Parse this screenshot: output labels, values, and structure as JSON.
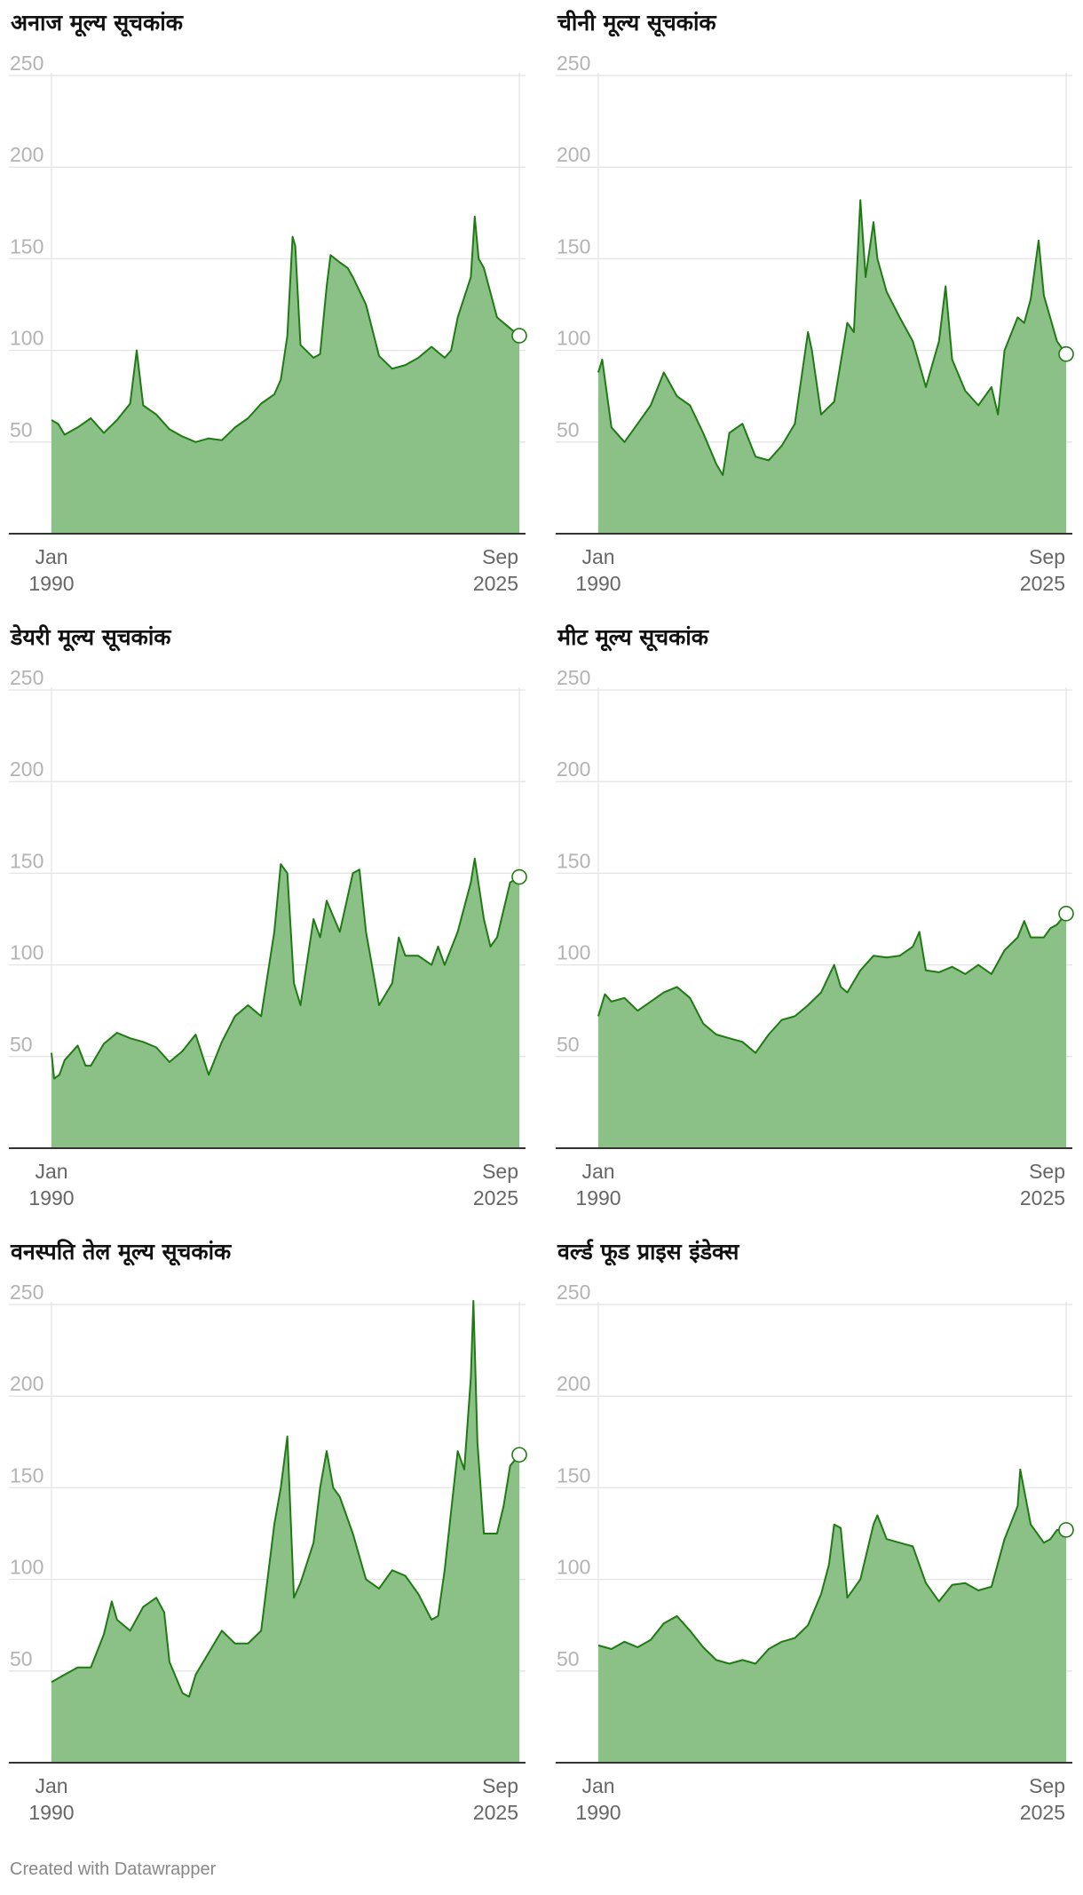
{
  "footer": {
    "credit": "Created with Datawrapper"
  },
  "colors": {
    "line": "#1f7a14",
    "area": "#8bc187",
    "grid": "#e4e4e4",
    "axis": "#333333"
  },
  "chart_data": [
    {
      "type": "area",
      "title": "अनाज मूल्य सूचकांक",
      "ylim": [
        0,
        250
      ],
      "yticks": [
        "250",
        "200",
        "150",
        "100",
        "50"
      ],
      "xticks": [
        {
          "month": "Jan",
          "year": "1990"
        },
        {
          "month": "Sep",
          "year": "2025"
        }
      ],
      "x": [
        1990.0,
        1990.5,
        1991.0,
        1992.0,
        1993.0,
        1994.0,
        1995.0,
        1996.0,
        1996.5,
        1997.0,
        1998.0,
        1999.0,
        2000.0,
        2001.0,
        2002.0,
        2003.0,
        2004.0,
        2005.0,
        2006.0,
        2007.0,
        2007.5,
        2008.0,
        2008.4,
        2008.6,
        2009.0,
        2010.0,
        2010.5,
        2011.0,
        2011.3,
        2012.0,
        2012.6,
        2013.0,
        2014.0,
        2015.0,
        2016.0,
        2017.0,
        2018.0,
        2019.0,
        2020.0,
        2020.5,
        2021.0,
        2022.0,
        2022.3,
        2022.6,
        2023.0,
        2024.0,
        2025.0,
        2025.7
      ],
      "values": [
        62,
        60,
        54,
        58,
        63,
        55,
        62,
        71,
        100,
        70,
        65,
        57,
        53,
        50,
        52,
        51,
        58,
        63,
        71,
        76,
        84,
        108,
        162,
        157,
        103,
        96,
        98,
        135,
        152,
        148,
        145,
        140,
        125,
        97,
        90,
        92,
        96,
        102,
        96,
        100,
        118,
        140,
        173,
        150,
        145,
        118,
        112,
        108
      ],
      "marker": {
        "x": 2025.7,
        "value": 108
      }
    },
    {
      "type": "area",
      "title": "चीनी मूल्य सूचकांक",
      "ylim": [
        0,
        250
      ],
      "yticks": [
        "250",
        "200",
        "150",
        "100",
        "50"
      ],
      "xticks": [
        {
          "month": "Jan",
          "year": "1990"
        },
        {
          "month": "Sep",
          "year": "2025"
        }
      ],
      "x": [
        1990.0,
        1990.3,
        1991.0,
        1992.0,
        1993.0,
        1994.0,
        1995.0,
        1996.0,
        1997.0,
        1998.0,
        1999.0,
        1999.5,
        2000.0,
        2001.0,
        2002.0,
        2003.0,
        2004.0,
        2005.0,
        2006.0,
        2006.3,
        2007.0,
        2008.0,
        2009.0,
        2009.5,
        2010.0,
        2010.4,
        2011.0,
        2011.3,
        2012.0,
        2013.0,
        2014.0,
        2014.4,
        2015.0,
        2016.0,
        2016.5,
        2017.0,
        2018.0,
        2019.0,
        2020.0,
        2020.5,
        2021.0,
        2022.0,
        2022.5,
        2023.0,
        2023.6,
        2024.0,
        2025.0,
        2025.7
      ],
      "values": [
        88,
        95,
        58,
        50,
        60,
        70,
        88,
        75,
        70,
        55,
        38,
        32,
        55,
        60,
        42,
        40,
        48,
        60,
        110,
        100,
        65,
        72,
        115,
        110,
        182,
        140,
        170,
        150,
        132,
        118,
        105,
        95,
        80,
        105,
        135,
        95,
        78,
        70,
        80,
        65,
        100,
        118,
        115,
        128,
        160,
        130,
        105,
        98
      ],
      "marker": {
        "x": 2025.7,
        "value": 98
      }
    },
    {
      "type": "area",
      "title": "डेयरी मूल्य सूचकांक",
      "ylim": [
        0,
        250
      ],
      "yticks": [
        "250",
        "200",
        "150",
        "100",
        "50"
      ],
      "xticks": [
        {
          "month": "Jan",
          "year": "1990"
        },
        {
          "month": "Sep",
          "year": "2025"
        }
      ],
      "x": [
        1990.0,
        1990.2,
        1990.6,
        1991.0,
        1992.0,
        1992.6,
        1993.0,
        1994.0,
        1995.0,
        1996.0,
        1997.0,
        1998.0,
        1999.0,
        2000.0,
        2001.0,
        2002.0,
        2003.0,
        2004.0,
        2005.0,
        2006.0,
        2007.0,
        2007.5,
        2008.0,
        2008.5,
        2009.0,
        2010.0,
        2010.5,
        2011.0,
        2012.0,
        2013.0,
        2013.5,
        2014.0,
        2015.0,
        2016.0,
        2016.5,
        2017.0,
        2018.0,
        2019.0,
        2019.5,
        2020.0,
        2021.0,
        2022.0,
        2022.3,
        2023.0,
        2023.5,
        2024.0,
        2025.0,
        2025.7
      ],
      "values": [
        52,
        38,
        40,
        48,
        56,
        45,
        45,
        57,
        63,
        60,
        58,
        55,
        47,
        53,
        62,
        40,
        58,
        72,
        78,
        72,
        118,
        155,
        150,
        90,
        78,
        125,
        115,
        135,
        118,
        150,
        152,
        118,
        78,
        90,
        115,
        105,
        105,
        100,
        110,
        100,
        118,
        145,
        158,
        125,
        110,
        115,
        145,
        148
      ],
      "marker": {
        "x": 2025.7,
        "value": 148
      }
    },
    {
      "type": "area",
      "title": "मीट मूल्य सूचकांक",
      "ylim": [
        0,
        250
      ],
      "yticks": [
        "250",
        "200",
        "150",
        "100",
        "50"
      ],
      "xticks": [
        {
          "month": "Jan",
          "year": "1990"
        },
        {
          "month": "Sep",
          "year": "2025"
        }
      ],
      "x": [
        1990.0,
        1990.5,
        1991.0,
        1992.0,
        1993.0,
        1994.0,
        1995.0,
        1996.0,
        1997.0,
        1998.0,
        1999.0,
        2000.0,
        2001.0,
        2002.0,
        2003.0,
        2004.0,
        2005.0,
        2006.0,
        2007.0,
        2008.0,
        2008.5,
        2009.0,
        2010.0,
        2011.0,
        2012.0,
        2013.0,
        2014.0,
        2014.5,
        2015.0,
        2016.0,
        2017.0,
        2018.0,
        2019.0,
        2020.0,
        2021.0,
        2022.0,
        2022.5,
        2023.0,
        2024.0,
        2024.5,
        2025.0,
        2025.7
      ],
      "values": [
        72,
        84,
        80,
        82,
        75,
        80,
        85,
        88,
        82,
        68,
        62,
        60,
        58,
        52,
        62,
        70,
        72,
        78,
        85,
        100,
        88,
        85,
        97,
        105,
        104,
        105,
        110,
        118,
        97,
        96,
        99,
        95,
        100,
        95,
        108,
        115,
        124,
        115,
        115,
        120,
        122,
        128
      ],
      "marker": {
        "x": 2025.7,
        "value": 128
      }
    },
    {
      "type": "area",
      "title": "वनस्पति तेल मूल्य सूचकांक",
      "ylim": [
        0,
        250
      ],
      "yticks": [
        "250",
        "200",
        "150",
        "100",
        "50"
      ],
      "xticks": [
        {
          "month": "Jan",
          "year": "1990"
        },
        {
          "month": "Sep",
          "year": "2025"
        }
      ],
      "x": [
        1990.0,
        1991.0,
        1992.0,
        1993.0,
        1994.0,
        1994.6,
        1995.0,
        1996.0,
        1997.0,
        1998.0,
        1998.6,
        1999.0,
        2000.0,
        2000.5,
        2001.0,
        2002.0,
        2003.0,
        2004.0,
        2005.0,
        2006.0,
        2007.0,
        2007.5,
        2008.0,
        2008.5,
        2009.0,
        2010.0,
        2010.5,
        2011.0,
        2011.5,
        2012.0,
        2013.0,
        2014.0,
        2015.0,
        2016.0,
        2017.0,
        2018.0,
        2019.0,
        2019.5,
        2020.0,
        2021.0,
        2021.5,
        2022.0,
        2022.2,
        2022.5,
        2023.0,
        2024.0,
        2024.5,
        2025.0,
        2025.7
      ],
      "values": [
        44,
        48,
        52,
        52,
        70,
        88,
        78,
        72,
        85,
        90,
        82,
        55,
        38,
        36,
        48,
        60,
        72,
        65,
        65,
        72,
        130,
        150,
        178,
        90,
        98,
        120,
        150,
        170,
        150,
        145,
        125,
        100,
        95,
        105,
        102,
        92,
        78,
        80,
        105,
        170,
        160,
        210,
        252,
        175,
        125,
        125,
        140,
        162,
        168
      ],
      "marker": {
        "x": 2025.7,
        "value": 168
      }
    },
    {
      "type": "area",
      "title": "वर्ल्ड फूड प्राइस इंडेक्स",
      "ylim": [
        0,
        250
      ],
      "yticks": [
        "250",
        "200",
        "150",
        "100",
        "50"
      ],
      "xticks": [
        {
          "month": "Jan",
          "year": "1990"
        },
        {
          "month": "Sep",
          "year": "2025"
        }
      ],
      "x": [
        1990.0,
        1991.0,
        1992.0,
        1993.0,
        1994.0,
        1995.0,
        1996.0,
        1997.0,
        1998.0,
        1999.0,
        2000.0,
        2001.0,
        2002.0,
        2003.0,
        2004.0,
        2005.0,
        2006.0,
        2007.0,
        2007.6,
        2008.0,
        2008.5,
        2009.0,
        2010.0,
        2011.0,
        2011.3,
        2012.0,
        2013.0,
        2014.0,
        2015.0,
        2016.0,
        2017.0,
        2018.0,
        2019.0,
        2020.0,
        2021.0,
        2022.0,
        2022.2,
        2022.6,
        2023.0,
        2024.0,
        2024.5,
        2025.0,
        2025.7
      ],
      "values": [
        64,
        62,
        66,
        63,
        67,
        76,
        80,
        72,
        63,
        56,
        54,
        56,
        54,
        62,
        66,
        68,
        75,
        92,
        108,
        130,
        128,
        90,
        100,
        130,
        135,
        122,
        120,
        118,
        98,
        88,
        97,
        98,
        94,
        96,
        122,
        140,
        160,
        145,
        130,
        120,
        122,
        127,
        127
      ],
      "marker": {
        "x": 2025.7,
        "value": 127
      }
    }
  ]
}
